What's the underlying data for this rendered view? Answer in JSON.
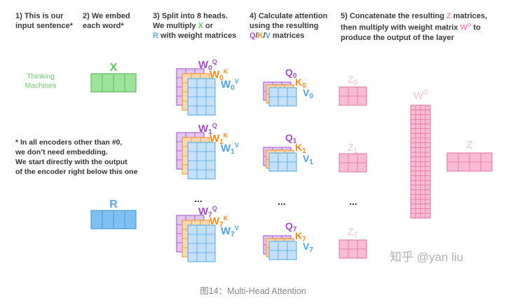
{
  "steps": {
    "s1": [
      "1) This is our",
      "input sentence*"
    ],
    "s2": [
      "2) We embed",
      "each word*"
    ],
    "s3": {
      "line1": "3) Split into 8 heads.",
      "line2_pre": "We multiply ",
      "line2_x": "X",
      "line2_post": " or",
      "line3_r": "R",
      "line3_post": " with weight matrices"
    },
    "s4": {
      "line1": "4) Calculate attention",
      "line2": "using the resulting",
      "line3_q": "Q",
      "sep1": "/",
      "line3_k": "K",
      "sep2": "/",
      "line3_v": "V",
      "line3_post": " matrices"
    },
    "s5": {
      "line1_pre": "5) Concatenate the resulting ",
      "line1_z": "Z",
      "line1_post": " matrices,",
      "line2_pre": "then multiply with weight matrix ",
      "line2_w": "W",
      "line2_wsup": "O",
      "line2_post": " to",
      "line3": "produce the output of the layer"
    }
  },
  "input_words": [
    "Thinking",
    "Machines"
  ],
  "x_label": "X",
  "r_label": "R",
  "note_lines": [
    "* In all encoders other than #0,",
    "we don’t need embedding.",
    "We start directly with the output",
    "of the encoder right below this one"
  ],
  "heads": [
    {
      "wq": "W",
      "wq_sub": "0",
      "wq_sup": "Q",
      "wk": "W",
      "wk_sub": "0",
      "wk_sup": "K",
      "wv": "W",
      "wv_sub": "0",
      "wv_sup": "V",
      "q": "Q",
      "q_sub": "0",
      "k": "K",
      "k_sub": "0",
      "v": "V",
      "v_sub": "0",
      "z": "Z",
      "z_sub": "0"
    },
    {
      "wq": "W",
      "wq_sub": "1",
      "wq_sup": "Q",
      "wk": "W",
      "wk_sub": "1",
      "wk_sup": "K",
      "wv": "W",
      "wv_sub": "1",
      "wv_sup": "V",
      "q": "Q",
      "q_sub": "1",
      "k": "K",
      "k_sub": "1",
      "v": "V",
      "v_sub": "1",
      "z": "Z",
      "z_sub": "1"
    },
    {
      "wq": "W",
      "wq_sub": "7",
      "wq_sup": "Q",
      "wk": "W",
      "wk_sub": "7",
      "wk_sup": "K",
      "wv": "W",
      "wv_sub": "7",
      "wv_sup": "V",
      "q": "Q",
      "q_sub": "7",
      "k": "K",
      "k_sub": "7",
      "v": "V",
      "v_sub": "7",
      "z": "Z",
      "z_sub": "7"
    }
  ],
  "ellipsis": "...",
  "wo_label": "W",
  "wo_sup": "O",
  "z_out_label": "Z",
  "watermark": "知乎 @yan liu",
  "caption": "图14：Multi-Head Attention",
  "colors": {
    "x_fill": "#9ee39a",
    "x_stroke": "#4caf50",
    "r_fill": "#7ec1f0",
    "r_stroke": "#3a8fd1",
    "q_fill": "#e3c6f2",
    "q_stroke": "#a24ec7",
    "k_fill": "#fbd9b0",
    "k_stroke": "#f08b1f",
    "v_fill": "#c6e0f7",
    "v_stroke": "#4ba3e8",
    "z_fill": "#f9bcd4",
    "z_stroke": "#e0709d"
  }
}
